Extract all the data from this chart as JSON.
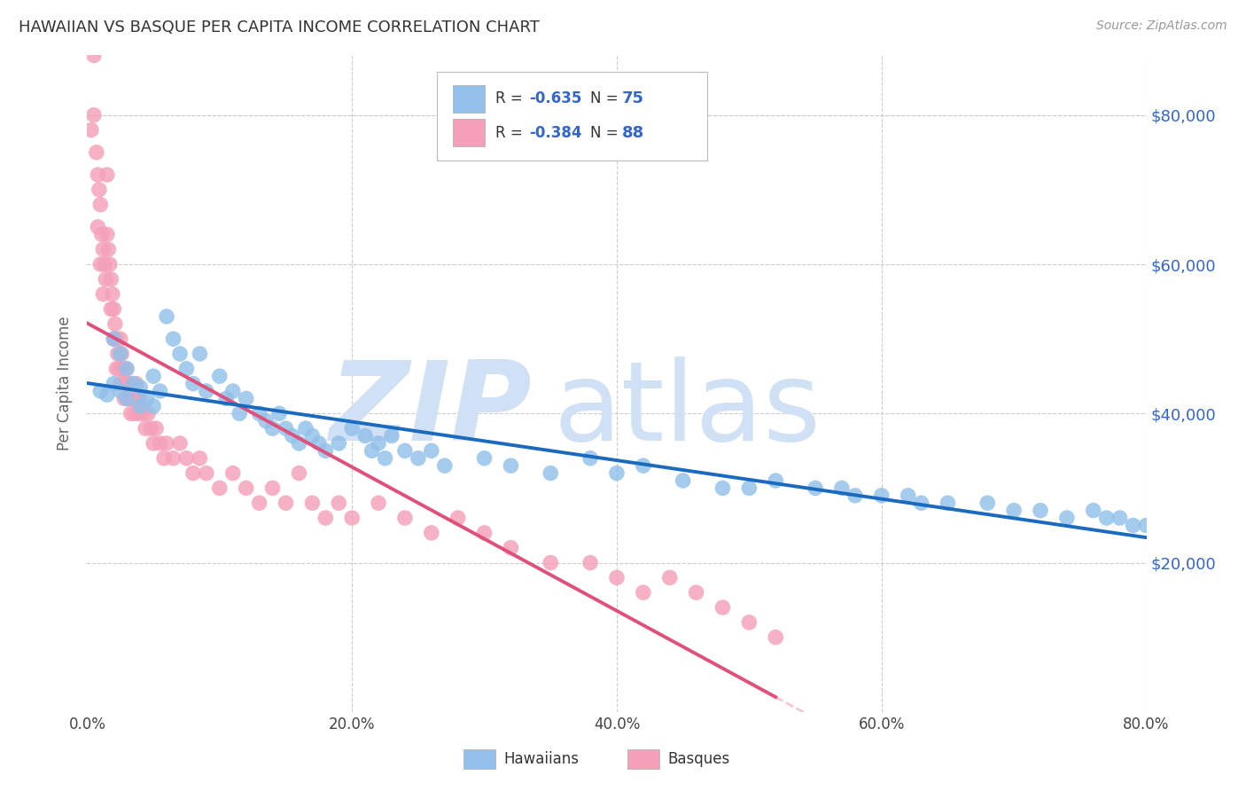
{
  "title": "HAWAIIAN VS BASQUE PER CAPITA INCOME CORRELATION CHART",
  "source": "Source: ZipAtlas.com",
  "ylabel": "Per Capita Income",
  "y_tick_labels": [
    "$20,000",
    "$40,000",
    "$60,000",
    "$80,000"
  ],
  "y_tick_values": [
    20000,
    40000,
    60000,
    80000
  ],
  "x_tick_labels": [
    "0.0%",
    "20.0%",
    "40.0%",
    "60.0%",
    "80.0%"
  ],
  "x_tick_values": [
    0.0,
    0.2,
    0.4,
    0.6,
    0.8
  ],
  "hawaiian_R": -0.635,
  "hawaiian_N": 75,
  "basque_R": -0.384,
  "basque_N": 88,
  "hawaiian_color": "#92c0ea",
  "basque_color": "#f4a0b8",
  "hawaiian_line_color": "#1a6abf",
  "basque_line_color": "#e0507a",
  "watermark_zip": "ZIP",
  "watermark_atlas": "atlas",
  "watermark_color": "#d0e0f5",
  "background_color": "#ffffff",
  "grid_color": "#cccccc",
  "legend_text_color": "#3366cc",
  "title_color": "#333333",
  "right_axis_color": "#3366cc",
  "hawaiian_x": [
    0.01,
    0.015,
    0.02,
    0.02,
    0.025,
    0.025,
    0.03,
    0.03,
    0.035,
    0.04,
    0.04,
    0.045,
    0.05,
    0.05,
    0.055,
    0.06,
    0.065,
    0.07,
    0.075,
    0.08,
    0.085,
    0.09,
    0.1,
    0.105,
    0.11,
    0.115,
    0.12,
    0.13,
    0.135,
    0.14,
    0.145,
    0.15,
    0.155,
    0.16,
    0.165,
    0.17,
    0.175,
    0.18,
    0.19,
    0.2,
    0.21,
    0.215,
    0.22,
    0.225,
    0.23,
    0.24,
    0.25,
    0.26,
    0.27,
    0.3,
    0.32,
    0.35,
    0.38,
    0.4,
    0.42,
    0.45,
    0.48,
    0.5,
    0.52,
    0.55,
    0.57,
    0.58,
    0.6,
    0.62,
    0.63,
    0.65,
    0.68,
    0.7,
    0.72,
    0.74,
    0.76,
    0.77,
    0.78,
    0.79,
    0.8
  ],
  "hawaiian_y": [
    43000,
    42500,
    50000,
    44000,
    48000,
    43000,
    46000,
    42000,
    44000,
    43500,
    41000,
    42000,
    45000,
    41000,
    43000,
    53000,
    50000,
    48000,
    46000,
    44000,
    48000,
    43000,
    45000,
    42000,
    43000,
    40000,
    42000,
    40000,
    39000,
    38000,
    40000,
    38000,
    37000,
    36000,
    38000,
    37000,
    36000,
    35000,
    36000,
    38000,
    37000,
    35000,
    36000,
    34000,
    37000,
    35000,
    34000,
    35000,
    33000,
    34000,
    33000,
    32000,
    34000,
    32000,
    33000,
    31000,
    30000,
    30000,
    31000,
    30000,
    30000,
    29000,
    29000,
    29000,
    28000,
    28000,
    28000,
    27000,
    27000,
    26000,
    27000,
    26000,
    26000,
    25000,
    25000
  ],
  "basque_x": [
    0.003,
    0.005,
    0.005,
    0.007,
    0.008,
    0.008,
    0.009,
    0.01,
    0.01,
    0.011,
    0.012,
    0.012,
    0.013,
    0.014,
    0.015,
    0.015,
    0.016,
    0.017,
    0.018,
    0.018,
    0.019,
    0.02,
    0.02,
    0.021,
    0.022,
    0.022,
    0.023,
    0.024,
    0.025,
    0.025,
    0.026,
    0.027,
    0.028,
    0.028,
    0.029,
    0.03,
    0.03,
    0.031,
    0.032,
    0.033,
    0.034,
    0.035,
    0.036,
    0.037,
    0.038,
    0.039,
    0.04,
    0.042,
    0.044,
    0.046,
    0.048,
    0.05,
    0.052,
    0.055,
    0.058,
    0.06,
    0.065,
    0.07,
    0.075,
    0.08,
    0.085,
    0.09,
    0.1,
    0.11,
    0.12,
    0.13,
    0.14,
    0.15,
    0.16,
    0.17,
    0.18,
    0.19,
    0.2,
    0.22,
    0.24,
    0.26,
    0.28,
    0.3,
    0.32,
    0.35,
    0.38,
    0.4,
    0.42,
    0.44,
    0.46,
    0.48,
    0.5,
    0.52
  ],
  "basque_y": [
    78000,
    88000,
    80000,
    75000,
    72000,
    65000,
    70000,
    68000,
    60000,
    64000,
    62000,
    56000,
    60000,
    58000,
    72000,
    64000,
    62000,
    60000,
    58000,
    54000,
    56000,
    54000,
    50000,
    52000,
    50000,
    46000,
    48000,
    46000,
    50000,
    44000,
    48000,
    46000,
    44000,
    42000,
    46000,
    44000,
    42000,
    44000,
    42000,
    40000,
    44000,
    42000,
    40000,
    44000,
    42000,
    40000,
    42000,
    40000,
    38000,
    40000,
    38000,
    36000,
    38000,
    36000,
    34000,
    36000,
    34000,
    36000,
    34000,
    32000,
    34000,
    32000,
    30000,
    32000,
    30000,
    28000,
    30000,
    28000,
    32000,
    28000,
    26000,
    28000,
    26000,
    28000,
    26000,
    24000,
    26000,
    24000,
    22000,
    20000,
    20000,
    18000,
    16000,
    18000,
    16000,
    14000,
    12000,
    10000
  ]
}
